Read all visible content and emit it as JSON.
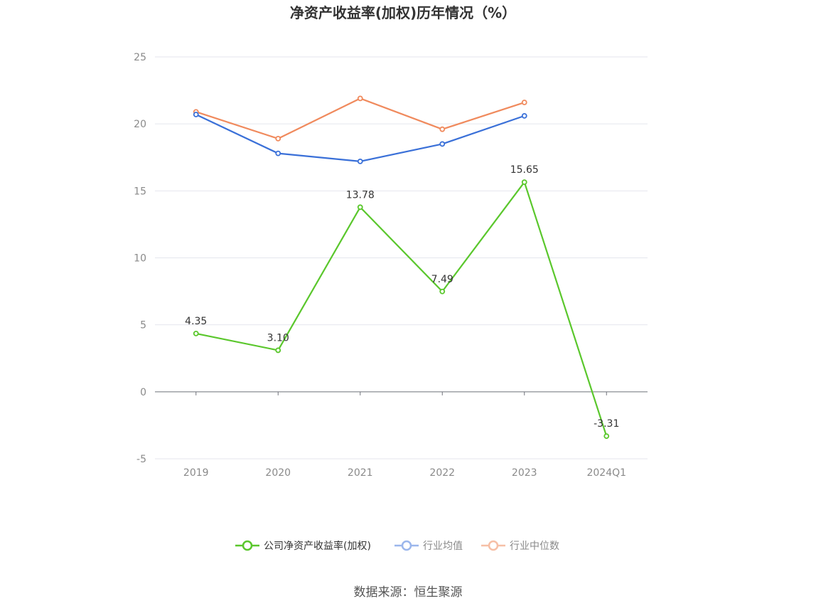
{
  "title": "净资产收益率(加权)历年情况（%）",
  "source": "数据来源：恒生聚源",
  "chart_data": {
    "type": "line",
    "title": "净资产收益率(加权)历年情况（%）",
    "categories": [
      "2019",
      "2020",
      "2021",
      "2022",
      "2023",
      "2024Q1"
    ],
    "ylim": [
      -5,
      25
    ],
    "yticks": [
      -5,
      0,
      5,
      10,
      15,
      20,
      25
    ],
    "grid": true,
    "legend_position": "bottom",
    "series": [
      {
        "name": "公司净资产收益率(加权)",
        "color": "#5ac72c",
        "values": [
          4.35,
          3.1,
          13.78,
          7.49,
          15.65,
          -3.31
        ],
        "labels": [
          "4.35",
          "3.10",
          "13.78",
          "7.49",
          "15.65",
          "-3.31"
        ]
      },
      {
        "name": "行业均值",
        "color": "#3a70d8",
        "legend_color": "#9bb6ec",
        "values": [
          20.7,
          17.8,
          17.2,
          18.5,
          20.6,
          null
        ]
      },
      {
        "name": "行业中位数",
        "color": "#f08a5d",
        "legend_color": "#f6bfa6",
        "values": [
          20.9,
          18.9,
          21.9,
          19.6,
          21.6,
          null
        ]
      }
    ]
  }
}
